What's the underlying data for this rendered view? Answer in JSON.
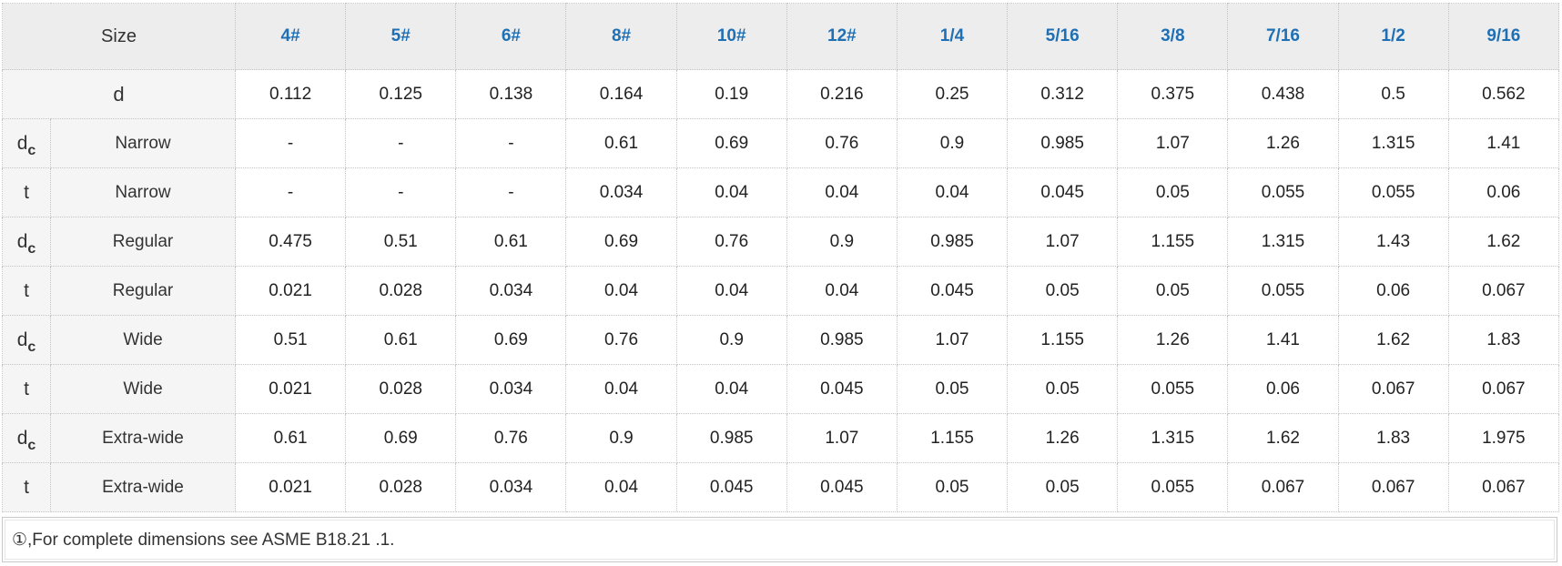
{
  "table": {
    "size_label": "Size",
    "sizes": [
      "4#",
      "5#",
      "6#",
      "8#",
      "10#",
      "12#",
      "1/4",
      "5/16",
      "3/8",
      "7/16",
      "1/2",
      "9/16"
    ],
    "d_row": {
      "label": "d",
      "values": [
        "0.112",
        "0.125",
        "0.138",
        "0.164",
        "0.19",
        "0.216",
        "0.25",
        "0.312",
        "0.375",
        "0.438",
        "0.5",
        "0.562"
      ]
    },
    "rows": [
      {
        "symbol": "d",
        "subscript": "c",
        "type": "Narrow",
        "values": [
          "-",
          "-",
          "-",
          "0.61",
          "0.69",
          "0.76",
          "0.9",
          "0.985",
          "1.07",
          "1.26",
          "1.315",
          "1.41"
        ]
      },
      {
        "symbol": "t",
        "subscript": "",
        "type": "Narrow",
        "values": [
          "-",
          "-",
          "-",
          "0.034",
          "0.04",
          "0.04",
          "0.04",
          "0.045",
          "0.05",
          "0.055",
          "0.055",
          "0.06"
        ]
      },
      {
        "symbol": "d",
        "subscript": "c",
        "type": "Regular",
        "values": [
          "0.475",
          "0.51",
          "0.61",
          "0.69",
          "0.76",
          "0.9",
          "0.985",
          "1.07",
          "1.155",
          "1.315",
          "1.43",
          "1.62"
        ]
      },
      {
        "symbol": "t",
        "subscript": "",
        "type": "Regular",
        "values": [
          "0.021",
          "0.028",
          "0.034",
          "0.04",
          "0.04",
          "0.04",
          "0.045",
          "0.05",
          "0.05",
          "0.055",
          "0.06",
          "0.067"
        ]
      },
      {
        "symbol": "d",
        "subscript": "c",
        "type": "Wide",
        "values": [
          "0.51",
          "0.61",
          "0.69",
          "0.76",
          "0.9",
          "0.985",
          "1.07",
          "1.155",
          "1.26",
          "1.41",
          "1.62",
          "1.83"
        ]
      },
      {
        "symbol": "t",
        "subscript": "",
        "type": "Wide",
        "values": [
          "0.021",
          "0.028",
          "0.034",
          "0.04",
          "0.04",
          "0.045",
          "0.05",
          "0.05",
          "0.055",
          "0.06",
          "0.067",
          "0.067"
        ]
      },
      {
        "symbol": "d",
        "subscript": "c",
        "type": "Extra-wide",
        "values": [
          "0.61",
          "0.69",
          "0.76",
          "0.9",
          "0.985",
          "1.07",
          "1.155",
          "1.26",
          "1.315",
          "1.62",
          "1.83",
          "1.975"
        ]
      },
      {
        "symbol": "t",
        "subscript": "",
        "type": "Extra-wide",
        "values": [
          "0.021",
          "0.028",
          "0.034",
          "0.04",
          "0.045",
          "0.045",
          "0.05",
          "0.05",
          "0.055",
          "0.067",
          "0.067",
          "0.067"
        ]
      }
    ]
  },
  "footnote": "①,For complete dimensions see ASME B18.21 .1.",
  "colors": {
    "size_header_text": "#1f6fb4",
    "header_bg": "#ededed",
    "label_bg": "#f5f5f5"
  }
}
